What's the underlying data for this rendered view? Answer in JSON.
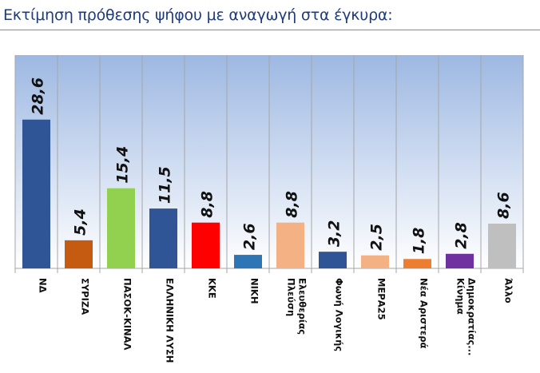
{
  "title": "Εκτίμηση πρόθεσης ψήφου με αναγωγή στα έγκυρα:",
  "chart_data": {
    "type": "bar",
    "title": "Εκτίμηση πρόθεσης ψήφου με αναγωγή στα έγκυρα:",
    "xlabel": "",
    "ylabel": "",
    "ylim": [
      0,
      41
    ],
    "grid": false,
    "categories": [
      "ΝΔ",
      "ΣΥΡΙΖΑ",
      "ΠΑΣΟΚ-ΚΙΝΑΛ",
      "ΕΛΛΗΝΙΚΗ ΛΥΣΗ",
      "ΚΚΕ",
      "ΝΙΚΗ",
      "Πλεύση Ελευθερίας",
      "Φωνή Λογικής",
      "ΜΕΡΑ25",
      "Νέα Αριστερά",
      "Κίνημα Δημοκρατίας...",
      "Άλλο"
    ],
    "values": [
      28.6,
      5.4,
      15.4,
      11.5,
      8.8,
      2.6,
      8.8,
      3.2,
      2.5,
      1.8,
      2.8,
      8.6
    ],
    "value_labels": [
      "28,6",
      "5,4",
      "15,4",
      "11,5",
      "8,8",
      "2,6",
      "8,8",
      "3,2",
      "2,5",
      "1,8",
      "2,8",
      "8,6"
    ],
    "colors": [
      "#2f5597",
      "#c55a11",
      "#92d050",
      "#2f5597",
      "#ff0000",
      "#2e75b6",
      "#f4b183",
      "#2f5597",
      "#f4b183",
      "#ed7d31",
      "#7030a0",
      "#bfbfbf"
    ]
  }
}
